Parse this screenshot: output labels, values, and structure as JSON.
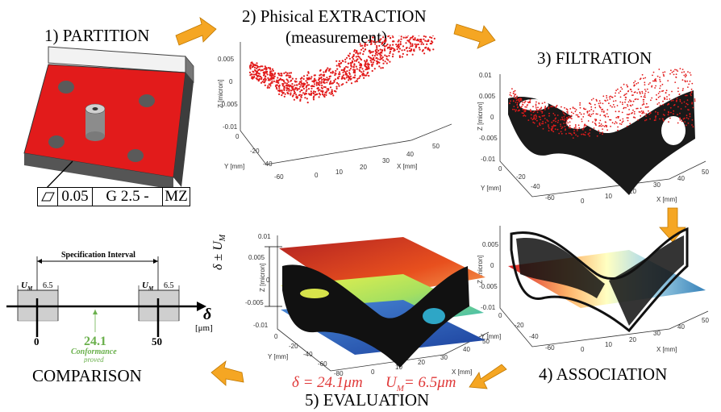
{
  "steps": {
    "partition": "1) PARTITION",
    "extraction_line1": "2) Phisical EXTRACTION",
    "extraction_line2": "(measurement)",
    "filtration": "3) FILTRATION",
    "association": "4) ASSOCIATION",
    "evaluation": "5) EVALUATION",
    "comparison": "COMPARISON"
  },
  "tolerance_frame": {
    "tolerance": "0.05",
    "filter": "G 2.5 -",
    "method": "MZ"
  },
  "plot_axes": {
    "z_label": "Z [micron]",
    "y_label": "Y [mm]",
    "x_label": "X [mm]",
    "extraction": {
      "z_ticks": [
        "0.005",
        "0",
        "-0.005",
        "-0.01"
      ],
      "y_ticks": [
        "0",
        "-20",
        "-40",
        "-60"
      ],
      "x_ticks": [
        "0",
        "10",
        "20",
        "30",
        "40",
        "50"
      ]
    },
    "filtration": {
      "z_ticks": [
        "0.01",
        "0.005",
        "0",
        "-0.005",
        "-0.01"
      ],
      "y_ticks": [
        "0",
        "-20",
        "-40",
        "-60"
      ],
      "x_ticks": [
        "0",
        "10",
        "20",
        "30",
        "40",
        "50"
      ]
    },
    "association": {
      "z_ticks": [
        "0.005",
        "0",
        "-0.005",
        "-0.01"
      ],
      "y_ticks": [
        "0",
        "-20",
        "-40",
        "-60"
      ],
      "x_ticks": [
        "0",
        "10",
        "20",
        "30",
        "40",
        "50"
      ]
    },
    "evaluation": {
      "z_ticks": [
        "0.01",
        "0.005",
        "0",
        "-0.005",
        "-0.01"
      ],
      "y_ticks": [
        "0",
        "-20",
        "-40",
        "-60",
        "-80"
      ],
      "x_ticks": [
        "0",
        "10",
        "20",
        "30",
        "40",
        "50"
      ]
    }
  },
  "evaluation": {
    "band_label": "δ ± U",
    "band_sub": "M",
    "delta_text": "δ = 24.1μm",
    "um_prefix": "U",
    "um_sub": "M",
    "um_value": "= 6.5μm"
  },
  "comparison": {
    "spec_interval": "Specification Interval",
    "um_label": "U",
    "um_sub": "M",
    "um_value": "6.5",
    "lower": "0",
    "upper": "50",
    "measured": "24.1",
    "conformance_line1": "Conformance",
    "conformance_line2": "proved",
    "axis_symbol": "δ",
    "axis_unit": "[μm]"
  },
  "colors": {
    "arrow": "#f5a623",
    "red_points": "#e21b1b",
    "conformance": "#6ab04c",
    "formula": "#e03a3a"
  }
}
